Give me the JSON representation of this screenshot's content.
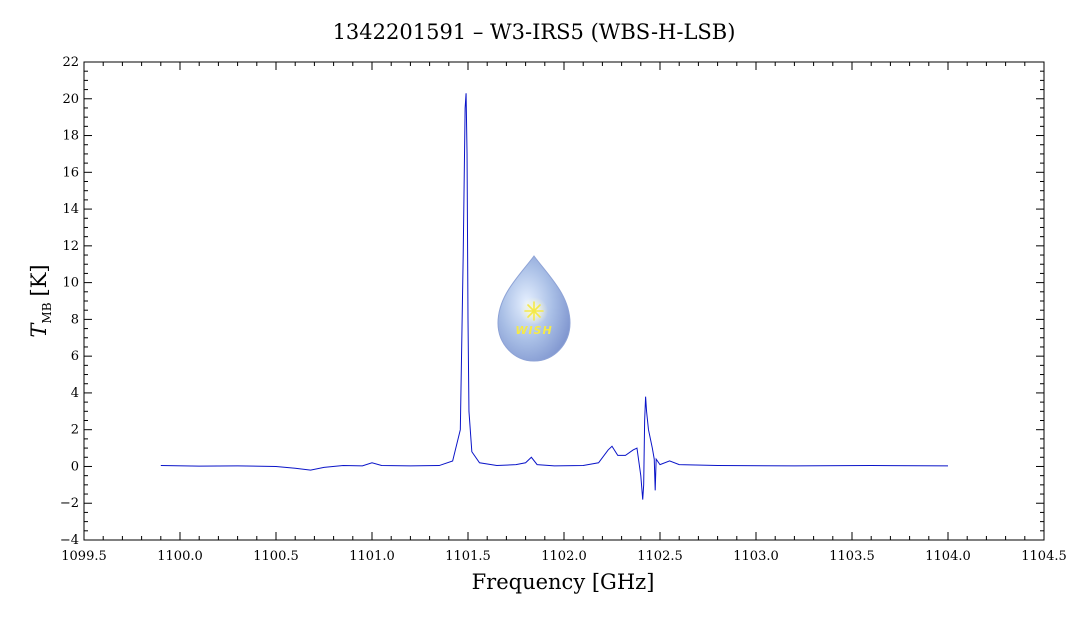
{
  "chart_data": {
    "type": "line",
    "title": "1342201591 – W3-IRS5 (WBS-H-LSB)",
    "xlabel": "Frequency [GHz]",
    "ylabel_main": "T",
    "ylabel_sub": "MB",
    "ylabel_unit": "[K]",
    "xlim": [
      1099.5,
      1104.5
    ],
    "ylim": [
      -4,
      22
    ],
    "x_ticks": [
      1099.5,
      1100.0,
      1100.5,
      1101.0,
      1101.5,
      1102.0,
      1102.5,
      1103.0,
      1103.5,
      1104.0,
      1104.5
    ],
    "x_tick_labels": [
      "1099.5",
      "1100.0",
      "1100.5",
      "1101.0",
      "1101.5",
      "1102.0",
      "1102.5",
      "1103.0",
      "1103.5",
      "1104.0",
      "1104.5"
    ],
    "y_ticks": [
      -4,
      -2,
      0,
      2,
      4,
      6,
      8,
      10,
      12,
      14,
      16,
      18,
      20,
      22
    ],
    "y_tick_labels": [
      "−4",
      "−2",
      "0",
      "2",
      "4",
      "6",
      "8",
      "10",
      "12",
      "14",
      "16",
      "18",
      "20",
      "22"
    ],
    "grid": false,
    "series": [
      {
        "color": "#0a14c8",
        "x": [
          1099.9,
          1100.1,
          1100.3,
          1100.5,
          1100.6,
          1100.68,
          1100.75,
          1100.85,
          1100.95,
          1101.0,
          1101.05,
          1101.2,
          1101.35,
          1101.42,
          1101.46,
          1101.475,
          1101.485,
          1101.49,
          1101.495,
          1101.5,
          1101.505,
          1101.52,
          1101.56,
          1101.65,
          1101.75,
          1101.8,
          1101.83,
          1101.86,
          1101.95,
          1102.1,
          1102.18,
          1102.23,
          1102.25,
          1102.28,
          1102.32,
          1102.36,
          1102.38,
          1102.4,
          1102.41,
          1102.415,
          1102.42,
          1102.425,
          1102.43,
          1102.44,
          1102.46,
          1102.47,
          1102.475,
          1102.48,
          1102.5,
          1102.55,
          1102.6,
          1102.8,
          1103.2,
          1103.6,
          1104.0
        ],
        "y": [
          0.05,
          0.02,
          0.03,
          0.0,
          -0.1,
          -0.2,
          -0.05,
          0.05,
          0.03,
          0.2,
          0.05,
          0.03,
          0.05,
          0.3,
          2.0,
          11.5,
          19.5,
          20.3,
          17.0,
          8.0,
          3.0,
          0.8,
          0.2,
          0.05,
          0.1,
          0.2,
          0.5,
          0.1,
          0.03,
          0.05,
          0.2,
          0.9,
          1.1,
          0.6,
          0.6,
          0.9,
          1.0,
          -0.5,
          -1.8,
          -1.0,
          2.5,
          3.8,
          3.0,
          2.0,
          1.0,
          0.4,
          -1.3,
          0.4,
          0.1,
          0.3,
          0.1,
          0.05,
          0.03,
          0.05,
          0.03
        ]
      }
    ],
    "logo_text": "WISH"
  }
}
